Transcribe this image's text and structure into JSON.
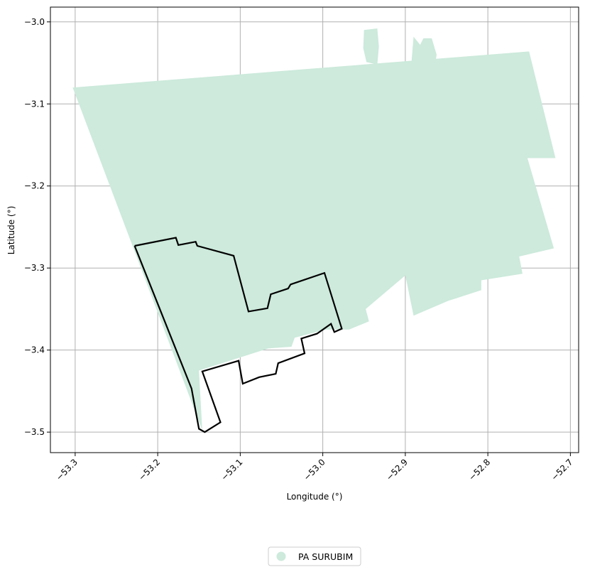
{
  "chart_data": {
    "type": "map",
    "xlabel": "Longitude (°)",
    "ylabel": "Latitude (°)",
    "xlim": [
      -53.33,
      -52.69
    ],
    "ylim": [
      -3.525,
      -2.982
    ],
    "xticks": [
      -53.3,
      -53.2,
      -53.1,
      -53.0,
      -52.9,
      -52.8,
      -52.7
    ],
    "xtick_labels": [
      "−53.3",
      "−53.2",
      "−53.1",
      "−53.0",
      "−52.9",
      "−52.8",
      "−52.7"
    ],
    "yticks": [
      -3.0,
      -3.1,
      -3.2,
      -3.3,
      -3.4,
      -3.5
    ],
    "ytick_labels": [
      "−3.0",
      "−3.1",
      "−3.2",
      "−3.3",
      "−3.4",
      "−3.5"
    ],
    "grid": true,
    "legend": {
      "placement": "bottom-center",
      "entries": [
        {
          "label": "PA SURUBIM",
          "color": "#cdeadc",
          "marker": "circle"
        }
      ]
    },
    "fill_color": "#cdeadc",
    "fill_polygons": [
      [
        [
          -53.303,
          -3.08
        ],
        [
          -52.75,
          -3.036
        ],
        [
          -52.718,
          -3.166
        ],
        [
          -52.752,
          -3.166
        ],
        [
          -52.72,
          -3.276
        ],
        [
          -52.762,
          -3.286
        ],
        [
          -52.758,
          -3.307
        ],
        [
          -52.808,
          -3.315
        ],
        [
          -52.808,
          -3.327
        ],
        [
          -52.848,
          -3.34
        ],
        [
          -52.89,
          -3.358
        ],
        [
          -52.9,
          -3.309
        ],
        [
          -52.948,
          -3.35
        ],
        [
          -52.944,
          -3.365
        ],
        [
          -52.968,
          -3.375
        ],
        [
          -52.996,
          -3.375
        ],
        [
          -53.034,
          -3.385
        ],
        [
          -53.038,
          -3.396
        ],
        [
          -53.066,
          -3.398
        ],
        [
          -53.15,
          -3.425
        ],
        [
          -53.146,
          -3.498
        ]
      ],
      [
        [
          -52.934,
          -3.008
        ],
        [
          -52.95,
          -3.01
        ],
        [
          -52.951,
          -3.032
        ],
        [
          -52.947,
          -3.049
        ],
        [
          -52.934,
          -3.052
        ],
        [
          -52.932,
          -3.03
        ]
      ],
      [
        [
          -52.89,
          -3.018
        ],
        [
          -52.893,
          -3.055
        ],
        [
          -52.864,
          -3.052
        ],
        [
          -52.862,
          -3.04
        ],
        [
          -52.868,
          -3.02
        ],
        [
          -52.878,
          -3.02
        ],
        [
          -52.882,
          -3.028
        ]
      ]
    ],
    "outline_color": "#000000",
    "outline_polygon": [
      [
        -53.228,
        -3.273
      ],
      [
        -53.178,
        -3.263
      ],
      [
        -53.175,
        -3.272
      ],
      [
        -53.154,
        -3.268
      ],
      [
        -53.152,
        -3.273
      ],
      [
        -53.108,
        -3.285
      ],
      [
        -53.09,
        -3.353
      ],
      [
        -53.067,
        -3.349
      ],
      [
        -53.063,
        -3.332
      ],
      [
        -53.042,
        -3.325
      ],
      [
        -53.039,
        -3.32
      ],
      [
        -52.998,
        -3.306
      ],
      [
        -52.977,
        -3.374
      ],
      [
        -52.986,
        -3.378
      ],
      [
        -52.99,
        -3.368
      ],
      [
        -53.007,
        -3.38
      ],
      [
        -53.026,
        -3.386
      ],
      [
        -53.022,
        -3.404
      ],
      [
        -53.054,
        -3.416
      ],
      [
        -53.057,
        -3.429
      ],
      [
        -53.077,
        -3.433
      ],
      [
        -53.097,
        -3.441
      ],
      [
        -53.102,
        -3.413
      ],
      [
        -53.146,
        -3.426
      ],
      [
        -53.124,
        -3.488
      ],
      [
        -53.143,
        -3.5
      ],
      [
        -53.15,
        -3.496
      ],
      [
        -53.159,
        -3.447
      ],
      [
        -53.228,
        -3.273
      ]
    ]
  }
}
